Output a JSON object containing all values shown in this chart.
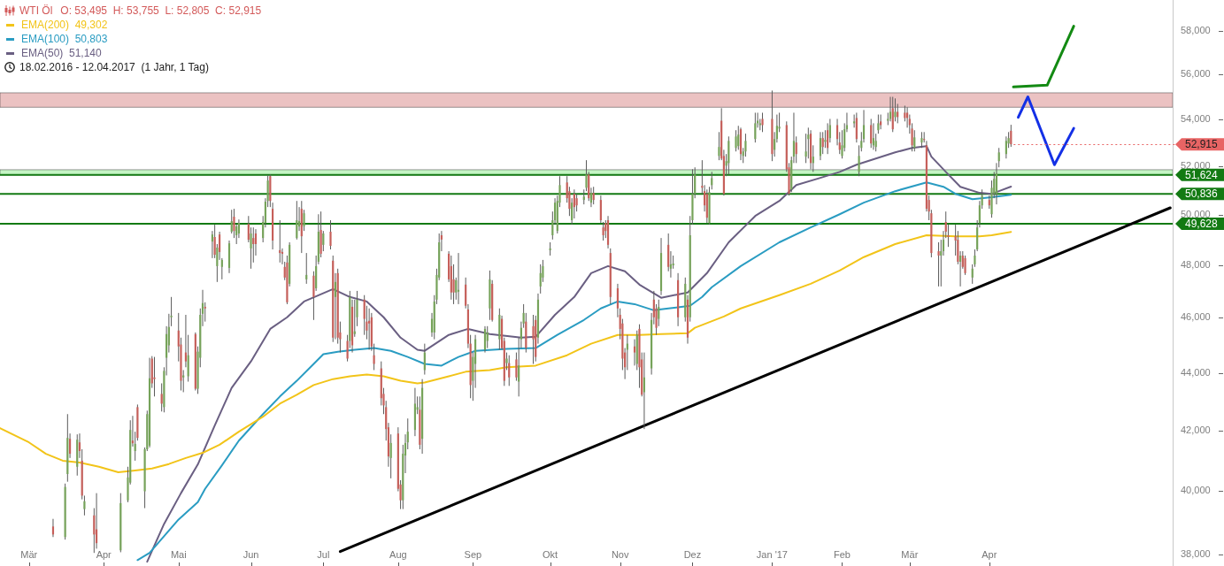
{
  "chart_data": {
    "type": "candlestick",
    "title": "WTI Öl",
    "subtitle": "O: 53,495  H: 53,755  L: 52,805  C: 52,915",
    "annotations": [
      "18.02.2016 - 12.04.2017  (1 Jahr, 1 Tag)",
      {
        "text": "52,915",
        "x": "2017-04-12",
        "y": 52915
      }
    ],
    "x": [
      "2016-03-11",
      "2016-03-16",
      "2016-03-17",
      "2016-03-18",
      "2016-03-21",
      "2016-03-22",
      "2016-03-23",
      "2016-03-24",
      "2016-03-28",
      "2016-03-29",
      "2016-04-08",
      "2016-04-11",
      "2016-04-12",
      "2016-04-13",
      "2016-04-14",
      "2016-04-15",
      "2016-04-18",
      "2016-04-19",
      "2016-04-20",
      "2016-04-21",
      "2016-04-22",
      "2016-04-25",
      "2016-04-26",
      "2016-04-27",
      "2016-04-28",
      "2016-04-29",
      "2016-05-02",
      "2016-05-03",
      "2016-05-04",
      "2016-05-05",
      "2016-05-06",
      "2016-05-09",
      "2016-05-10",
      "2016-05-11",
      "2016-05-12",
      "2016-05-13",
      "2016-05-16",
      "2016-05-17",
      "2016-05-18",
      "2016-05-19",
      "2016-05-20",
      "2016-05-23",
      "2016-05-24",
      "2016-05-25",
      "2016-05-26",
      "2016-05-27",
      "2016-05-31",
      "2016-06-01",
      "2016-06-02",
      "2016-06-03",
      "2016-06-06",
      "2016-06-07",
      "2016-06-08",
      "2016-06-09",
      "2016-06-10",
      "2016-06-13",
      "2016-06-14",
      "2016-06-15",
      "2016-06-16",
      "2016-06-17",
      "2016-06-20",
      "2016-06-21",
      "2016-06-22",
      "2016-06-23",
      "2016-06-24",
      "2016-06-27",
      "2016-06-28",
      "2016-06-29",
      "2016-06-30",
      "2016-07-01",
      "2016-07-04",
      "2016-07-05",
      "2016-07-06",
      "2016-07-07",
      "2016-07-08",
      "2016-07-11",
      "2016-07-12",
      "2016-07-13",
      "2016-07-14",
      "2016-07-15",
      "2016-07-18",
      "2016-07-19",
      "2016-07-20",
      "2016-07-21",
      "2016-07-22",
      "2016-07-25",
      "2016-07-26",
      "2016-07-27",
      "2016-07-28",
      "2016-07-29",
      "2016-08-01",
      "2016-08-02",
      "2016-08-03",
      "2016-08-04",
      "2016-08-05",
      "2016-08-08",
      "2016-08-09",
      "2016-08-10",
      "2016-08-11",
      "2016-08-12",
      "2016-08-15",
      "2016-08-16",
      "2016-08-17",
      "2016-08-18",
      "2016-08-19",
      "2016-08-22",
      "2016-08-23",
      "2016-08-24",
      "2016-08-25",
      "2016-08-26",
      "2016-08-29",
      "2016-08-30",
      "2016-08-31",
      "2016-09-01",
      "2016-09-02",
      "2016-09-06",
      "2016-09-07",
      "2016-09-08",
      "2016-09-09",
      "2016-09-12",
      "2016-09-13",
      "2016-09-14",
      "2016-09-15",
      "2016-09-16",
      "2016-09-19",
      "2016-09-20",
      "2016-09-21",
      "2016-09-22",
      "2016-09-23",
      "2016-09-26",
      "2016-09-27",
      "2016-09-28",
      "2016-09-29",
      "2016-09-30",
      "2016-10-03",
      "2016-10-04",
      "2016-10-05",
      "2016-10-06",
      "2016-10-07",
      "2016-10-10",
      "2016-10-11",
      "2016-10-12",
      "2016-10-13",
      "2016-10-14",
      "2016-10-17",
      "2016-10-18",
      "2016-10-19",
      "2016-10-20",
      "2016-10-21",
      "2016-10-24",
      "2016-10-25",
      "2016-10-26",
      "2016-10-27",
      "2016-10-28",
      "2016-10-31",
      "2016-11-01",
      "2016-11-02",
      "2016-11-03",
      "2016-11-04",
      "2016-11-07",
      "2016-11-08",
      "2016-11-09",
      "2016-11-10",
      "2016-11-11",
      "2016-11-14",
      "2016-11-15",
      "2016-11-16",
      "2016-11-17",
      "2016-11-18",
      "2016-11-21",
      "2016-11-22",
      "2016-11-23",
      "2016-11-25",
      "2016-11-28",
      "2016-11-29",
      "2016-11-30",
      "2016-12-01",
      "2016-12-02",
      "2016-12-05",
      "2016-12-06",
      "2016-12-07",
      "2016-12-08",
      "2016-12-09",
      "2016-12-12",
      "2016-12-13",
      "2016-12-14",
      "2016-12-15",
      "2016-12-16",
      "2016-12-19",
      "2016-12-20",
      "2016-12-21",
      "2016-12-22",
      "2016-12-23",
      "2016-12-27",
      "2016-12-28",
      "2016-12-29",
      "2016-12-30",
      "2017-01-03",
      "2017-01-04",
      "2017-01-05",
      "2017-01-06",
      "2017-01-09",
      "2017-01-10",
      "2017-01-11",
      "2017-01-12",
      "2017-01-13",
      "2017-01-17",
      "2017-01-18",
      "2017-01-19",
      "2017-01-20",
      "2017-01-23",
      "2017-01-24",
      "2017-01-25",
      "2017-01-26",
      "2017-01-27",
      "2017-01-30",
      "2017-01-31",
      "2017-02-01",
      "2017-02-02",
      "2017-02-03",
      "2017-02-06",
      "2017-02-07",
      "2017-02-08",
      "2017-02-09",
      "2017-02-10",
      "2017-02-13",
      "2017-02-14",
      "2017-02-15",
      "2017-02-16",
      "2017-02-17",
      "2017-02-20",
      "2017-02-21",
      "2017-02-22",
      "2017-02-23",
      "2017-02-24",
      "2017-02-27",
      "2017-02-28",
      "2017-03-01",
      "2017-03-02",
      "2017-03-03",
      "2017-03-06",
      "2017-03-07",
      "2017-03-08",
      "2017-03-09",
      "2017-03-10",
      "2017-03-13",
      "2017-03-14",
      "2017-03-15",
      "2017-03-16",
      "2017-03-17",
      "2017-03-20",
      "2017-03-21",
      "2017-03-22",
      "2017-03-23",
      "2017-03-24",
      "2017-03-27",
      "2017-03-28",
      "2017-03-29",
      "2017-03-30",
      "2017-03-31",
      "2017-04-03",
      "2017-04-04",
      "2017-04-05",
      "2017-04-06",
      "2017-04-07",
      "2017-04-10",
      "2017-04-11",
      "2017-04-12"
    ],
    "ohlc": [
      [
        38870,
        39110,
        38540,
        38620
      ],
      [
        38540,
        40240,
        38460,
        40130
      ],
      [
        40550,
        42560,
        40300,
        41750
      ],
      [
        41720,
        41900,
        41080,
        41220
      ],
      [
        40790,
        41870,
        40500,
        41690
      ],
      [
        41600,
        41900,
        41080,
        41310
      ],
      [
        40990,
        41370,
        39730,
        39850
      ],
      [
        39420,
        39850,
        39220,
        39670
      ],
      [
        39220,
        39450,
        38050,
        38620
      ],
      [
        38780,
        39930,
        38180,
        38350
      ],
      [
        38130,
        39930,
        38070,
        39610
      ],
      [
        39700,
        40790,
        39640,
        40440
      ],
      [
        40270,
        42350,
        40210,
        42020
      ],
      [
        41660,
        42500,
        41460,
        41570
      ],
      [
        41310,
        41960,
        40990,
        41550
      ],
      [
        42800,
        42890,
        41660,
        41750
      ],
      [
        39990,
        41430,
        39450,
        41370
      ],
      [
        41370,
        42680,
        41310,
        42560
      ],
      [
        41490,
        44540,
        41430,
        43810
      ],
      [
        44510,
        44600,
        43470,
        43630
      ],
      [
        43840,
        44570,
        43170,
        43780
      ],
      [
        43260,
        43630,
        42650,
        42920
      ],
      [
        42800,
        44200,
        42620,
        44070
      ],
      [
        44540,
        45690,
        43910,
        45400
      ],
      [
        44990,
        46150,
        44730,
        45660
      ],
      [
        46020,
        46780,
        45690,
        46080
      ],
      [
        45530,
        46180,
        44410,
        44950
      ],
      [
        45020,
        45270,
        43380,
        43720
      ],
      [
        43840,
        44100,
        43320,
        43910
      ],
      [
        44730,
        46110,
        44200,
        44410
      ],
      [
        43880,
        45370,
        43690,
        44630
      ],
      [
        45400,
        45460,
        43380,
        43440
      ],
      [
        43440,
        44950,
        43260,
        44760
      ],
      [
        44540,
        46350,
        44200,
        46110
      ],
      [
        46150,
        47050,
        45690,
        46550
      ],
      [
        46410,
        46580,
        45860,
        46350
      ],
      [
        48920,
        49340,
        48270,
        49200
      ],
      [
        49100,
        49590,
        48270,
        48400
      ],
      [
        47960,
        48820,
        47350,
        48680
      ],
      [
        49200,
        49310,
        48200,
        48510
      ],
      [
        47930,
        48270,
        47450,
        48200
      ],
      [
        47890,
        48960,
        47690,
        48850
      ],
      [
        49310,
        50190,
        49240,
        49730
      ],
      [
        49910,
        50230,
        49060,
        49340
      ],
      [
        49170,
        49590,
        48820,
        49520
      ],
      [
        49240,
        49800,
        49060,
        49660
      ],
      [
        49620,
        49940,
        48890,
        48990
      ],
      [
        48650,
        49480,
        47860,
        49240
      ],
      [
        49060,
        49480,
        48100,
        48820
      ],
      [
        49240,
        49410,
        48370,
        48820
      ],
      [
        49060,
        49940,
        48890,
        49700
      ],
      [
        49660,
        50660,
        49480,
        50520
      ],
      [
        50550,
        51600,
        50300,
        51390
      ],
      [
        51570,
        51640,
        50300,
        50550
      ],
      [
        50230,
        50480,
        48610,
        48960
      ],
      [
        48580,
        49770,
        48100,
        48470
      ],
      [
        48510,
        48650,
        48030,
        48440
      ],
      [
        47930,
        48130,
        47420,
        47520
      ],
      [
        48100,
        48370,
        46510,
        46580
      ],
      [
        47280,
        48890,
        47180,
        48790
      ],
      [
        49060,
        50550,
        49000,
        49770
      ],
      [
        49520,
        50300,
        49340,
        49730
      ],
      [
        50230,
        50550,
        48470,
        49130
      ],
      [
        49520,
        50190,
        49340,
        50050
      ],
      [
        47450,
        48470,
        47280,
        47620
      ],
      [
        47590,
        47760,
        45920,
        46780
      ],
      [
        47110,
        48370,
        47010,
        47960
      ],
      [
        48130,
        50010,
        48030,
        49310
      ],
      [
        49380,
        50120,
        48300,
        48440
      ],
      [
        48790,
        49340,
        48540,
        49240
      ],
      [
        49310,
        49770,
        48610,
        48750
      ],
      [
        48170,
        48370,
        45110,
        45270
      ],
      [
        46780,
        47690,
        45210,
        47350
      ],
      [
        47690,
        47860,
        45050,
        45270
      ],
      [
        45460,
        45860,
        44730,
        45210
      ],
      [
        45150,
        45370,
        44410,
        44510
      ],
      [
        45150,
        47010,
        44890,
        46780
      ],
      [
        46410,
        46680,
        44730,
        44990
      ],
      [
        45400,
        46680,
        45300,
        45500
      ],
      [
        46020,
        47010,
        45690,
        46680
      ],
      [
        46680,
        46850,
        45370,
        45960
      ],
      [
        45860,
        46450,
        45210,
        45530
      ],
      [
        45890,
        46350,
        44830,
        45790
      ],
      [
        46020,
        46180,
        44790,
        44950
      ],
      [
        44630,
        45050,
        44100,
        44320
      ],
      [
        44160,
        44410,
        42860,
        43110
      ],
      [
        43260,
        43470,
        42560,
        42860
      ],
      [
        42800,
        43020,
        41660,
        42050
      ],
      [
        42110,
        42260,
        40790,
        41130
      ],
      [
        41080,
        41870,
        40410,
        41580
      ],
      [
        41900,
        42110,
        39990,
        40070
      ],
      [
        40210,
        40350,
        39420,
        39700
      ],
      [
        39700,
        41520,
        39420,
        41220
      ],
      [
        41160,
        41870,
        40580,
        41580
      ],
      [
        41600,
        42410,
        41370,
        41960
      ],
      [
        42020,
        43470,
        41810,
        42920
      ],
      [
        42710,
        43170,
        42560,
        42800
      ],
      [
        42710,
        43170,
        41370,
        41520
      ],
      [
        41720,
        43780,
        41220,
        43470
      ],
      [
        44100,
        45050,
        43940,
        44730
      ],
      [
        45460,
        46180,
        45300,
        45960
      ],
      [
        45460,
        46850,
        45210,
        46610
      ],
      [
        46680,
        47860,
        46510,
        47620
      ],
      [
        47520,
        49240,
        47420,
        48890
      ],
      [
        49170,
        49340,
        48540,
        49000
      ],
      [
        48440,
        48540,
        47350,
        47450
      ],
      [
        47960,
        48370,
        46680,
        46950
      ],
      [
        47450,
        48030,
        46510,
        46950
      ],
      [
        46950,
        47520,
        46680,
        47420
      ],
      [
        46980,
        48470,
        46510,
        47050
      ],
      [
        47250,
        47520,
        46350,
        46450
      ],
      [
        46310,
        46510,
        44890,
        45050
      ],
      [
        45050,
        45370,
        43110,
        43570
      ],
      [
        43720,
        44730,
        43020,
        44570
      ],
      [
        44320,
        45370,
        43470,
        45210
      ],
      [
        44830,
        45690,
        44730,
        45590
      ],
      [
        45150,
        45690,
        44890,
        45460
      ],
      [
        46350,
        47790,
        45920,
        47450
      ],
      [
        47280,
        47420,
        45860,
        45920
      ],
      [
        45210,
        46350,
        44830,
        46110
      ],
      [
        45960,
        46080,
        44830,
        44890
      ],
      [
        45150,
        45270,
        43540,
        43720
      ],
      [
        44350,
        44730,
        44100,
        44510
      ],
      [
        44350,
        44630,
        43540,
        43840
      ],
      [
        44480,
        44730,
        43720,
        43840
      ],
      [
        43690,
        45270,
        43170,
        44260
      ],
      [
        45210,
        45860,
        44890,
        45630
      ],
      [
        45790,
        46510,
        45630,
        46180
      ],
      [
        45860,
        46180,
        44730,
        44890
      ],
      [
        45690,
        46110,
        44320,
        45210
      ],
      [
        45920,
        46080,
        44410,
        44570
      ],
      [
        45270,
        46910,
        45050,
        46680
      ],
      [
        47180,
        48030,
        46910,
        47690
      ],
      [
        47520,
        48200,
        47350,
        47960
      ],
      [
        48580,
        48890,
        48370,
        48650
      ],
      [
        49170,
        50120,
        49000,
        49770
      ],
      [
        49770,
        50660,
        49590,
        50480
      ],
      [
        49340,
        50770,
        49240,
        50550
      ],
      [
        50480,
        51570,
        50300,
        51200
      ],
      [
        51310,
        51570,
        50480,
        50660
      ],
      [
        50950,
        51130,
        49940,
        50230
      ],
      [
        49770,
        50660,
        49590,
        50480
      ],
      [
        50840,
        51020,
        49840,
        50300
      ],
      [
        50660,
        50840,
        50120,
        50370
      ],
      [
        50590,
        51020,
        50410,
        50730
      ],
      [
        51090,
        52240,
        50950,
        51640
      ],
      [
        51640,
        51750,
        50550,
        50660
      ],
      [
        50480,
        51090,
        50300,
        50880
      ],
      [
        50880,
        51130,
        50410,
        50590
      ],
      [
        50590,
        50770,
        49660,
        49770
      ],
      [
        49480,
        49700,
        48960,
        49170
      ],
      [
        49660,
        49770,
        49060,
        49340
      ],
      [
        49770,
        49940,
        48650,
        48790
      ],
      [
        48470,
        48650,
        46510,
        46780
      ],
      [
        47110,
        47280,
        46020,
        46350
      ],
      [
        46110,
        46350,
        45210,
        45590
      ],
      [
        45790,
        45960,
        44100,
        44510
      ],
      [
        44730,
        44890,
        43780,
        44200
      ],
      [
        44830,
        45370,
        44100,
        45050
      ],
      [
        44950,
        45210,
        44260,
        44730
      ],
      [
        44320,
        45530,
        44100,
        45370
      ],
      [
        45590,
        45760,
        43470,
        44200
      ],
      [
        44480,
        44730,
        43170,
        43230
      ],
      [
        43320,
        44730,
        42050,
        43840
      ],
      [
        44160,
        46180,
        43940,
        45920
      ],
      [
        46680,
        47010,
        45760,
        46020
      ],
      [
        46350,
        46510,
        45370,
        45630
      ],
      [
        45960,
        46680,
        45690,
        46410
      ],
      [
        47010,
        49060,
        46850,
        48470
      ],
      [
        48790,
        49240,
        47760,
        47930
      ],
      [
        47860,
        48540,
        47520,
        48030
      ],
      [
        47990,
        48370,
        47860,
        48060
      ],
      [
        47420,
        47690,
        45690,
        46020
      ],
      [
        46020,
        47520,
        45860,
        47280
      ],
      [
        46680,
        46850,
        45050,
        45270
      ],
      [
        46020,
        49940,
        45860,
        49170
      ],
      [
        49770,
        51860,
        49590,
        50840
      ],
      [
        50840,
        51940,
        50660,
        51640
      ],
      [
        51170,
        52240,
        50840,
        51090
      ],
      [
        50950,
        51200,
        50120,
        50370
      ],
      [
        50840,
        51020,
        49660,
        49870
      ],
      [
        49660,
        51130,
        49590,
        50910
      ],
      [
        51200,
        51750,
        51020,
        51490
      ],
      [
        52420,
        53440,
        52240,
        52800
      ],
      [
        53930,
        54480,
        52240,
        52310
      ],
      [
        52420,
        52680,
        50770,
        50840
      ],
      [
        52010,
        52500,
        51570,
        52200
      ],
      [
        52120,
        53250,
        51640,
        53060
      ],
      [
        52760,
        53520,
        52610,
        53250
      ],
      [
        52840,
        53710,
        52680,
        53330
      ],
      [
        53560,
        53630,
        52240,
        52500
      ],
      [
        52420,
        52760,
        52120,
        52610
      ],
      [
        52610,
        53370,
        52390,
        53060
      ],
      [
        53140,
        54280,
        52990,
        53820
      ],
      [
        53820,
        54280,
        53630,
        53930
      ],
      [
        53740,
        54010,
        53520,
        53820
      ],
      [
        54010,
        54280,
        53440,
        53740
      ],
      [
        54010,
        55260,
        52200,
        52500
      ],
      [
        52680,
        53440,
        52390,
        53140
      ],
      [
        53140,
        54200,
        52990,
        53710
      ],
      [
        53590,
        54280,
        53440,
        53670
      ],
      [
        53740,
        53900,
        51750,
        51860
      ],
      [
        51940,
        52120,
        50770,
        50840
      ],
      [
        51020,
        52390,
        50910,
        52240
      ],
      [
        52390,
        54280,
        52120,
        53060
      ],
      [
        52990,
        53250,
        52120,
        52500
      ],
      [
        52390,
        53370,
        52120,
        52610
      ],
      [
        53140,
        53630,
        52310,
        53330
      ],
      [
        53370,
        53520,
        51860,
        52120
      ],
      [
        52120,
        52870,
        51750,
        52390
      ],
      [
        52420,
        53440,
        52240,
        53180
      ],
      [
        53180,
        53440,
        52500,
        52800
      ],
      [
        53020,
        53520,
        52760,
        53100
      ],
      [
        53520,
        53820,
        52500,
        52760
      ],
      [
        53180,
        54010,
        52990,
        53740
      ],
      [
        53740,
        54010,
        52870,
        53140
      ],
      [
        52990,
        53440,
        52500,
        52680
      ],
      [
        52420,
        53520,
        52310,
        52870
      ],
      [
        52760,
        53820,
        52610,
        53560
      ],
      [
        53560,
        54280,
        53440,
        53740
      ],
      [
        53820,
        54200,
        53630,
        53900
      ],
      [
        54050,
        54280,
        52990,
        53140
      ],
      [
        51750,
        52870,
        51570,
        52420
      ],
      [
        52760,
        53440,
        52610,
        53060
      ],
      [
        53140,
        54400,
        52990,
        53740
      ],
      [
        53740,
        54010,
        52760,
        52950
      ],
      [
        52870,
        53820,
        52680,
        53180
      ],
      [
        52800,
        53370,
        52610,
        53060
      ],
      [
        53520,
        54200,
        53370,
        53820
      ],
      [
        53900,
        54200,
        53560,
        53740
      ],
      [
        53930,
        54280,
        53740,
        54010
      ],
      [
        54010,
        54980,
        53900,
        54320
      ],
      [
        54480,
        54980,
        53440,
        53560
      ],
      [
        54090,
        54910,
        53900,
        54320
      ],
      [
        54320,
        54670,
        53820,
        54090
      ],
      [
        54280,
        54590,
        53900,
        54050
      ],
      [
        54280,
        54520,
        53630,
        54050
      ],
      [
        54010,
        54200,
        53370,
        53740
      ],
      [
        53590,
        53820,
        52610,
        52870
      ],
      [
        52760,
        53520,
        52610,
        53210
      ],
      [
        52990,
        53440,
        52760,
        53180
      ],
      [
        53140,
        53440,
        52990,
        53100
      ],
      [
        52870,
        53060,
        50120,
        50230
      ],
      [
        50590,
        50770,
        49770,
        50120
      ],
      [
        50050,
        50190,
        48300,
        48470
      ],
      [
        48540,
        48890,
        47180,
        48370
      ],
      [
        48370,
        48990,
        47180,
        48540
      ],
      [
        48540,
        49340,
        48370,
        48990
      ],
      [
        49700,
        50120,
        49060,
        49310
      ],
      [
        49170,
        49590,
        48710,
        49100
      ],
      [
        49130,
        49590,
        48370,
        48960
      ],
      [
        48990,
        49340,
        48030,
        48130
      ],
      [
        48130,
        48540,
        47180,
        48370
      ],
      [
        48370,
        48540,
        47860,
        47930
      ],
      [
        48270,
        48370,
        47620,
        47690
      ],
      [
        47520,
        48030,
        47280,
        47860
      ],
      [
        48030,
        48610,
        47930,
        48370
      ],
      [
        48610,
        49770,
        48540,
        49480
      ],
      [
        49660,
        50550,
        49480,
        50370
      ],
      [
        50370,
        51020,
        50230,
        50770
      ],
      [
        50590,
        50770,
        50230,
        50370
      ],
      [
        50010,
        51390,
        49870,
        51090
      ],
      [
        50840,
        51750,
        50660,
        51460
      ],
      [
        50840,
        52120,
        50410,
        51680
      ],
      [
        52200,
        52760,
        51940,
        52570
      ],
      [
        52500,
        53250,
        52310,
        53060
      ],
      [
        52950,
        53440,
        52760,
        53180
      ],
      [
        53495,
        53755,
        52805,
        52915
      ]
    ],
    "series": [
      {
        "type": "line",
        "name": "EMA(200)  49,302",
        "color": "#f2c419",
        "x": [
          "2016-02-18",
          "2016-03-01",
          "2016-03-08",
          "2016-03-15",
          "2016-03-22",
          "2016-03-30",
          "2016-04-07",
          "2016-04-14",
          "2016-04-21",
          "2016-04-28",
          "2016-05-05",
          "2016-05-12",
          "2016-05-19",
          "2016-05-27",
          "2016-06-06",
          "2016-06-13",
          "2016-06-20",
          "2016-06-27",
          "2016-07-05",
          "2016-07-12",
          "2016-07-19",
          "2016-07-26",
          "2016-08-02",
          "2016-08-09",
          "2016-08-12",
          "2016-08-22",
          "2016-08-29",
          "2016-09-08",
          "2016-09-15",
          "2016-09-27",
          "2016-10-10",
          "2016-10-20",
          "2016-10-31",
          "2016-11-09",
          "2016-11-18",
          "2016-11-29",
          "2016-12-02",
          "2016-12-14",
          "2016-12-21",
          "2017-01-06",
          "2017-01-19",
          "2017-01-31",
          "2017-02-10",
          "2017-02-23",
          "2017-03-08",
          "2017-03-20",
          "2017-03-30",
          "2017-04-04",
          "2017-04-12"
        ],
        "values": [
          42080,
          41600,
          41220,
          40990,
          40930,
          40790,
          40610,
          40670,
          40730,
          40880,
          41080,
          41250,
          41520,
          41960,
          42470,
          42920,
          43230,
          43570,
          43780,
          43880,
          43940,
          43880,
          43720,
          43630,
          43660,
          43880,
          44040,
          44100,
          44200,
          44260,
          44630,
          45050,
          45370,
          45370,
          45400,
          45430,
          45630,
          46050,
          46350,
          46850,
          47280,
          47790,
          48310,
          48820,
          49170,
          49130,
          49130,
          49170,
          49302
        ]
      },
      {
        "type": "line",
        "name": "EMA(100)  50,803",
        "color": "#2a9cc2",
        "x": [
          "2016-04-15",
          "2016-04-20",
          "2016-05-02",
          "2016-05-10",
          "2016-05-13",
          "2016-05-20",
          "2016-05-27",
          "2016-06-06",
          "2016-06-13",
          "2016-06-20",
          "2016-06-27",
          "2016-07-01",
          "2016-07-07",
          "2016-07-14",
          "2016-07-22",
          "2016-07-29",
          "2016-08-05",
          "2016-08-12",
          "2016-08-19",
          "2016-08-26",
          "2016-09-02",
          "2016-09-15",
          "2016-09-27",
          "2016-10-06",
          "2016-10-17",
          "2016-10-24",
          "2016-10-31",
          "2016-11-07",
          "2016-11-15",
          "2016-11-21",
          "2016-11-30",
          "2016-12-05",
          "2016-12-09",
          "2016-12-21",
          "2017-01-06",
          "2017-01-19",
          "2017-01-31",
          "2017-02-10",
          "2017-02-23",
          "2017-03-08",
          "2017-03-15",
          "2017-03-20",
          "2017-03-27",
          "2017-04-04",
          "2017-04-12"
        ],
        "values": [
          37830,
          38050,
          39090,
          39640,
          40070,
          40840,
          41660,
          42560,
          43170,
          43720,
          44320,
          44670,
          44760,
          44830,
          44890,
          44790,
          44570,
          44320,
          44260,
          44570,
          44790,
          44860,
          44890,
          45370,
          45920,
          46350,
          46610,
          46510,
          46280,
          46350,
          46450,
          46780,
          47150,
          47960,
          48890,
          49480,
          50010,
          50480,
          50950,
          51310,
          51130,
          50840,
          50620,
          50700,
          50803
        ]
      },
      {
        "type": "line",
        "name": "EMA(50)  51,140",
        "color": "#6a5f82",
        "x": [
          "2016-04-19",
          "2016-04-26",
          "2016-05-03",
          "2016-05-10",
          "2016-05-17",
          "2016-05-24",
          "2016-06-01",
          "2016-06-09",
          "2016-06-16",
          "2016-06-23",
          "2016-07-05",
          "2016-07-12",
          "2016-07-19",
          "2016-07-26",
          "2016-08-02",
          "2016-08-09",
          "2016-08-12",
          "2016-08-22",
          "2016-08-30",
          "2016-09-08",
          "2016-09-21",
          "2016-09-27",
          "2016-10-05",
          "2016-10-13",
          "2016-10-20",
          "2016-10-27",
          "2016-11-03",
          "2016-11-09",
          "2016-11-18",
          "2016-11-29",
          "2016-12-07",
          "2016-12-16",
          "2016-12-27",
          "2017-01-06",
          "2017-01-13",
          "2017-01-23",
          "2017-01-31",
          "2017-02-07",
          "2017-02-15",
          "2017-02-23",
          "2017-03-02",
          "2017-03-08",
          "2017-03-10",
          "2017-03-16",
          "2017-03-22",
          "2017-03-30",
          "2017-04-04",
          "2017-04-07",
          "2017-04-12"
        ],
        "values": [
          37780,
          38950,
          39930,
          40870,
          42170,
          43470,
          44410,
          45590,
          46020,
          46610,
          47080,
          46780,
          46610,
          46020,
          45270,
          44830,
          44790,
          45370,
          45590,
          45400,
          45270,
          45300,
          46110,
          46780,
          47690,
          47960,
          47760,
          47250,
          46750,
          46950,
          47690,
          48890,
          49940,
          50550,
          51200,
          51500,
          51750,
          52050,
          52310,
          52570,
          52760,
          52840,
          52390,
          51750,
          51130,
          50880,
          50840,
          50950,
          51140
        ]
      },
      {
        "type": "line",
        "color": "#000000",
        "x": [
          "2016-07-08",
          "2017-06-17"
        ],
        "values": [
          38090,
          50270
        ]
      },
      {
        "type": "line",
        "color": "#138a13",
        "x": [
          "2017-04-13",
          "2017-04-27",
          "2017-05-08"
        ],
        "values": [
          55420,
          55500,
          58210
        ]
      },
      {
        "type": "line",
        "color": "#1430e6",
        "x": [
          "2017-04-15",
          "2017-04-19",
          "2017-04-30",
          "2017-05-08"
        ],
        "values": [
          54080,
          54980,
          52050,
          53600
        ]
      }
    ],
    "xlim": [
      "2016-02-18",
      "2017-06-18"
    ],
    "xticks": [
      {
        "value": "2016-03-01",
        "label": "Mär"
      },
      {
        "value": "2016-04-01",
        "label": "Apr"
      },
      {
        "value": "2016-05-02",
        "label": "Mai"
      },
      {
        "value": "2016-06-01",
        "label": "Jun"
      },
      {
        "value": "2016-07-01",
        "label": "Jul"
      },
      {
        "value": "2016-08-01",
        "label": "Aug"
      },
      {
        "value": "2016-09-01",
        "label": "Sep"
      },
      {
        "value": "2016-10-03",
        "label": "Okt"
      },
      {
        "value": "2016-11-01",
        "label": "Nov"
      },
      {
        "value": "2016-12-01",
        "label": "Dez"
      },
      {
        "value": "2017-01-03",
        "label": "Jan '17"
      },
      {
        "value": "2017-02-01",
        "label": "Feb"
      },
      {
        "value": "2017-03-01",
        "label": "Mär"
      },
      {
        "value": "2017-04-03",
        "label": "Apr"
      }
    ],
    "ylim": [
      37650,
      59450
    ],
    "yticks": [
      {
        "value": 38000,
        "label": "38,000"
      },
      {
        "value": 40000,
        "label": "40,000"
      },
      {
        "value": 42000,
        "label": "42,000"
      },
      {
        "value": 44000,
        "label": "44,000"
      },
      {
        "value": 46000,
        "label": "46,000"
      },
      {
        "value": 48000,
        "label": "48,000"
      },
      {
        "value": 50000,
        "label": "50,000"
      },
      {
        "value": 52000,
        "label": "52,000"
      },
      {
        "value": 54000,
        "label": "54,000"
      },
      {
        "value": 56000,
        "label": "56,000"
      },
      {
        "value": 58000,
        "label": "58,000"
      }
    ],
    "log": true,
    "ref_lines": [
      {
        "axis": "y",
        "value": 51624,
        "label": "51,624",
        "color": "#137a13"
      },
      {
        "axis": "y",
        "value": 50836,
        "label": "50,836",
        "color": "#137a13"
      },
      {
        "axis": "y",
        "value": 49628,
        "label": "49,628",
        "color": "#137a13"
      }
    ],
    "bands": [
      {
        "axis": "y",
        "from": 51624,
        "to": 51840,
        "color": "#c4f5c4"
      },
      {
        "axis": "y",
        "from": 54520,
        "to": 55160,
        "color": "#ebc2c2"
      }
    ],
    "legend": "top left"
  }
}
